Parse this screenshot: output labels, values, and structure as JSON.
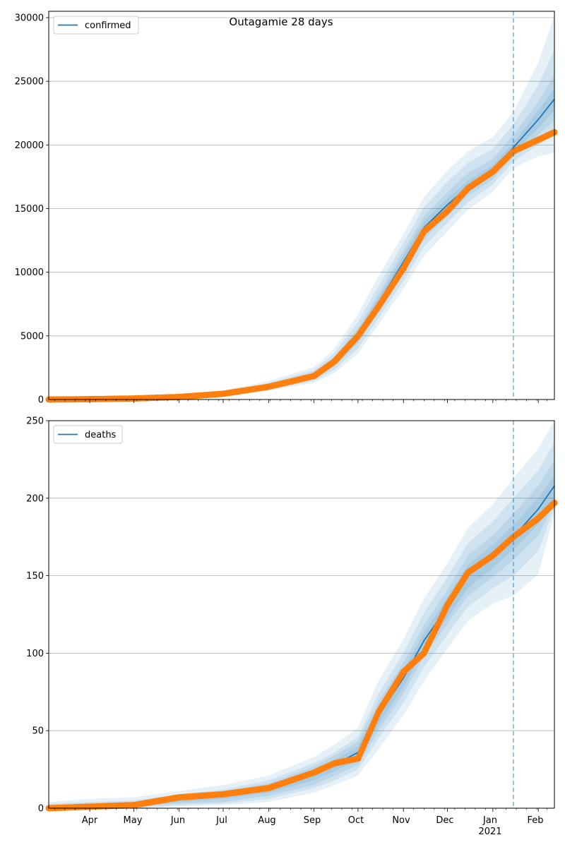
{
  "figure": {
    "title": "Outagamie 28 days"
  },
  "colors": {
    "model_line": "#1f77b4",
    "observed_points": "#ff7f0e",
    "band_fill": "#1f77b4",
    "grid": "#b0b0b0",
    "forecast_divider": "#1f77b4"
  },
  "x_axis": {
    "month_labels": [
      "Apr",
      "May",
      "Jun",
      "Jul",
      "Aug",
      "Sep",
      "Oct",
      "Nov",
      "Dec",
      "Jan",
      "Feb"
    ],
    "year_label": "2021",
    "range": [
      "2020-03-04",
      "2021-02-12"
    ],
    "forecast_start": "2021-01-15"
  },
  "chart_data": [
    {
      "type": "line",
      "legend": [
        "confirmed"
      ],
      "legend_placement": "upper-left",
      "x": [
        "2020-03-04",
        "2020-04-01",
        "2020-05-01",
        "2020-06-01",
        "2020-07-01",
        "2020-08-01",
        "2020-09-01",
        "2020-09-15",
        "2020-10-01",
        "2020-10-15",
        "2020-11-01",
        "2020-11-15",
        "2020-12-01",
        "2020-12-15",
        "2021-01-01",
        "2021-01-15",
        "2021-02-01",
        "2021-02-12"
      ],
      "series": [
        {
          "name": "confirmed",
          "kind": "model",
          "values": [
            0,
            30,
            80,
            200,
            450,
            1000,
            1850,
            3000,
            5000,
            7600,
            10800,
            13500,
            15300,
            16700,
            18000,
            19800,
            22000,
            23600
          ]
        },
        {
          "kind": "observed",
          "values": [
            0,
            30,
            80,
            200,
            450,
            1000,
            1850,
            3000,
            5000,
            7300,
            10300,
            13200,
            14800,
            16600,
            17900,
            19500,
            20400,
            21000
          ]
        }
      ],
      "bands": [
        {
          "lower": [
            0,
            10,
            40,
            120,
            300,
            700,
            1300,
            2100,
            3600,
            5900,
            8700,
            11300,
            13200,
            14900,
            16300,
            18200,
            19100,
            19400
          ],
          "upper": [
            0,
            70,
            150,
            330,
            700,
            1450,
            2550,
            4000,
            6700,
            9700,
            13000,
            15900,
            18000,
            19500,
            20600,
            22600,
            26500,
            30200
          ]
        },
        {
          "lower": [
            0,
            15,
            50,
            140,
            340,
            780,
            1450,
            2350,
            4000,
            6400,
            9300,
            12000,
            13900,
            15500,
            16900,
            18700,
            20000,
            20800
          ],
          "upper": [
            0,
            55,
            125,
            290,
            620,
            1300,
            2300,
            3650,
            6100,
            8900,
            12300,
            15100,
            17100,
            18600,
            19700,
            21600,
            24700,
            27500
          ]
        },
        {
          "lower": [
            0,
            20,
            60,
            160,
            380,
            850,
            1600,
            2600,
            4400,
            6900,
            9900,
            12600,
            14400,
            16000,
            17300,
            19100,
            20800,
            21900
          ],
          "upper": [
            0,
            45,
            105,
            250,
            540,
            1160,
            2100,
            3350,
            5600,
            8300,
            11700,
            14400,
            16300,
            17800,
            18900,
            20800,
            23400,
            25500
          ]
        },
        {
          "lower": [
            0,
            24,
            68,
            175,
            410,
            910,
            1720,
            2800,
            4700,
            7200,
            10300,
            13000,
            14800,
            16300,
            17600,
            19400,
            21300,
            22700
          ],
          "upper": [
            0,
            38,
            92,
            225,
            490,
            1080,
            1960,
            3180,
            5300,
            8000,
            11300,
            14000,
            15800,
            17200,
            18400,
            20200,
            22700,
            24500
          ]
        }
      ],
      "ylim": [
        0,
        30500
      ],
      "yticks": [
        "0",
        "5000",
        "10000",
        "15000",
        "20000",
        "25000",
        "30000"
      ],
      "grid": "horizontal",
      "forecast_divider": "dashed vertical"
    },
    {
      "type": "line",
      "legend": [
        "deaths"
      ],
      "legend_placement": "upper-left",
      "x": [
        "2020-03-04",
        "2020-04-01",
        "2020-05-01",
        "2020-06-01",
        "2020-07-01",
        "2020-08-01",
        "2020-09-01",
        "2020-09-15",
        "2020-10-01",
        "2020-10-15",
        "2020-11-01",
        "2020-11-15",
        "2020-12-01",
        "2020-12-15",
        "2021-01-01",
        "2021-01-15",
        "2021-02-01",
        "2021-02-12"
      ],
      "series": [
        {
          "name": "deaths",
          "kind": "model",
          "values": [
            0,
            1,
            2,
            6,
            8,
            12,
            22,
            28,
            36,
            60,
            84,
            108,
            130,
            150,
            163,
            175,
            193,
            208
          ]
        },
        {
          "kind": "observed",
          "values": [
            0,
            1,
            2,
            7,
            9,
            13,
            23,
            29,
            32,
            62,
            88,
            100,
            131,
            152,
            163,
            175,
            187,
            197
          ]
        }
      ],
      "bands": [
        {
          "lower": [
            0,
            0,
            0,
            1,
            2,
            4,
            10,
            15,
            21,
            38,
            60,
            82,
            103,
            121,
            132,
            137,
            151,
            190
          ],
          "upper": [
            4,
            6,
            7,
            11,
            15,
            21,
            33,
            41,
            52,
            82,
            109,
            135,
            158,
            181,
            196,
            213,
            232,
            250
          ]
        },
        {
          "lower": [
            0,
            0,
            0,
            2,
            3,
            6,
            13,
            18,
            25,
            45,
            68,
            91,
            112,
            130,
            142,
            150,
            166,
            194
          ],
          "upper": [
            3,
            4,
            5,
            9,
            12,
            18,
            29,
            36,
            46,
            74,
            100,
            126,
            149,
            171,
            185,
            200,
            218,
            236
          ]
        },
        {
          "lower": [
            0,
            0,
            1,
            3,
            4,
            8,
            15,
            21,
            28,
            50,
            74,
            98,
            119,
            137,
            149,
            160,
            176,
            197
          ],
          "upper": [
            2,
            3,
            4,
            8,
            11,
            16,
            27,
            34,
            43,
            69,
            94,
            118,
            141,
            163,
            176,
            190,
            208,
            224
          ]
        },
        {
          "lower": [
            0,
            0,
            1,
            4,
            6,
            10,
            18,
            24,
            31,
            54,
            78,
            102,
            123,
            142,
            155,
            167,
            183,
            200
          ],
          "upper": [
            1,
            2,
            3,
            7,
            10,
            14,
            25,
            31,
            40,
            65,
            89,
            113,
            136,
            157,
            170,
            183,
            200,
            215
          ]
        }
      ],
      "ylim": [
        0,
        250
      ],
      "yticks": [
        "0",
        "50",
        "100",
        "150",
        "200",
        "250"
      ],
      "grid": "horizontal",
      "forecast_divider": "dashed vertical"
    }
  ]
}
